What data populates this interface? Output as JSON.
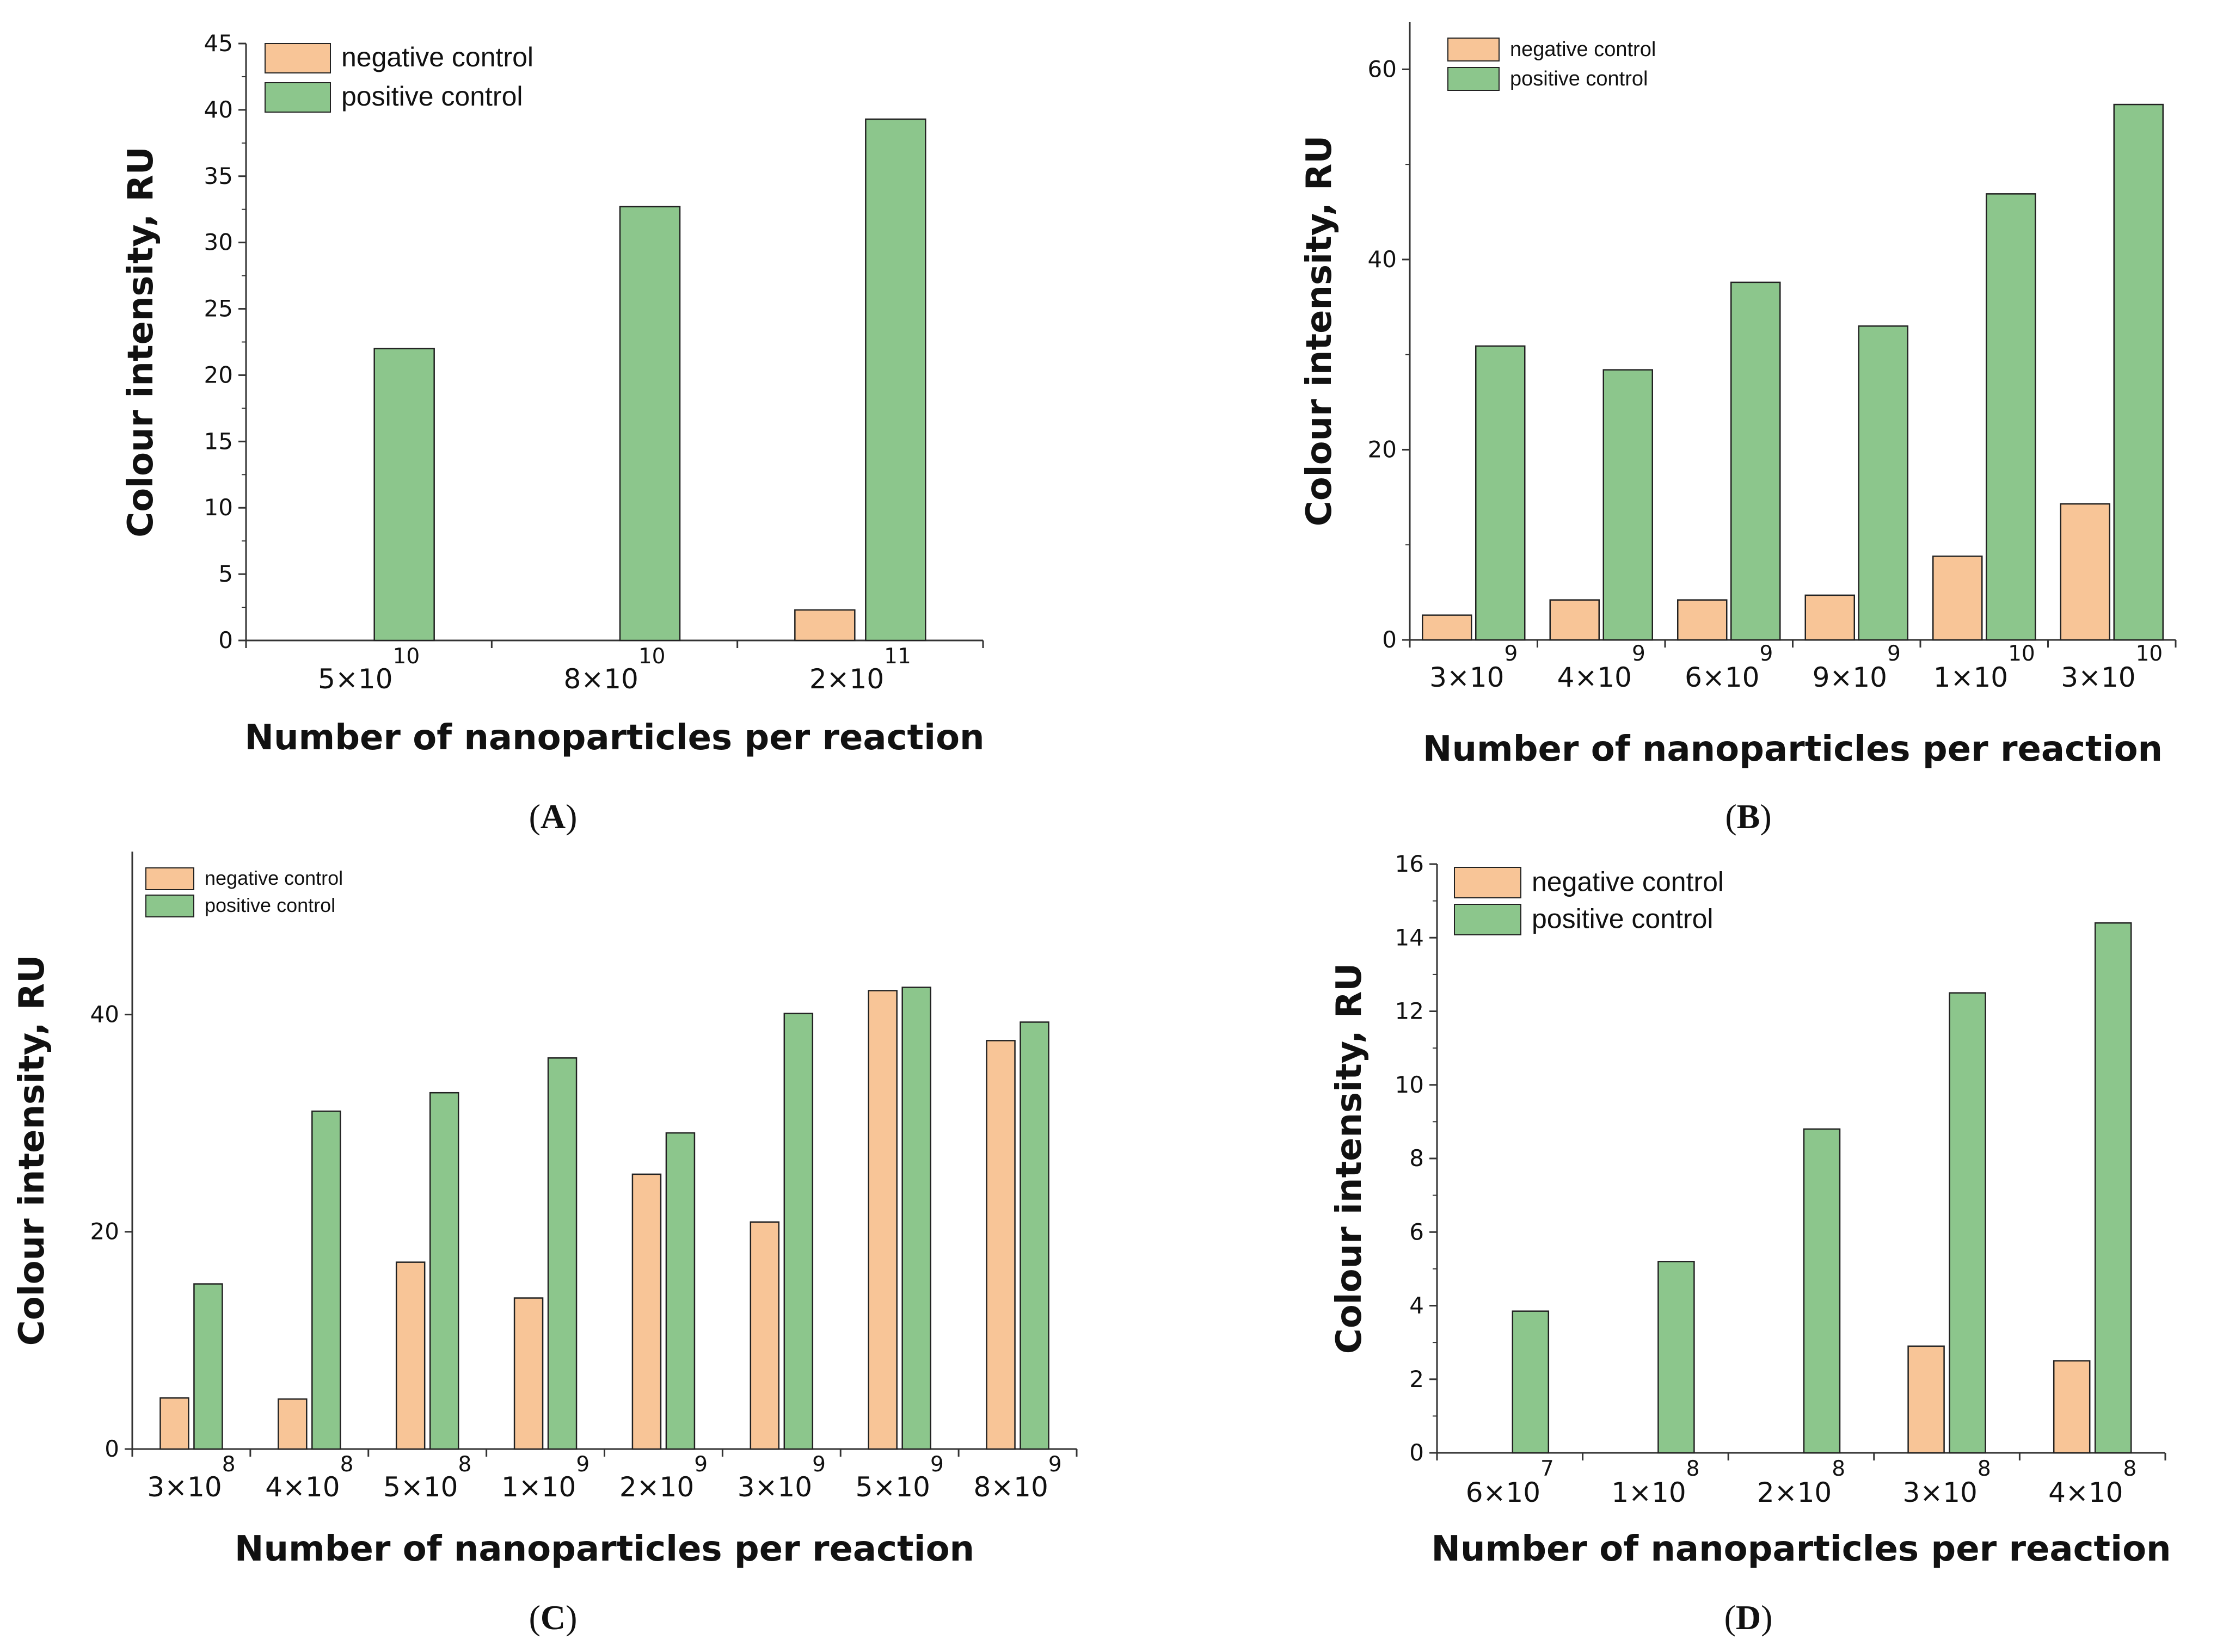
{
  "colors": {
    "negative": "#f8c597",
    "positive": "#8cc68c",
    "stroke": "#222222"
  },
  "chart_data": [
    {
      "panel": "A",
      "type": "bar",
      "xlabel": "Number of nanoparticles per reaction",
      "ylabel": "Colour intensity, RU",
      "ylim": [
        0,
        45
      ],
      "yticks": [
        0,
        5,
        10,
        15,
        20,
        25,
        30,
        35,
        40,
        45
      ],
      "categories": [
        {
          "mant": "5",
          "times": "×10",
          "exp": "10"
        },
        {
          "mant": "8",
          "times": "×10",
          "exp": "10"
        },
        {
          "mant": "2",
          "times": "×10",
          "exp": "11"
        }
      ],
      "series": [
        {
          "name": "negative control",
          "color": "#f8c597",
          "values": [
            0,
            0,
            2.3
          ]
        },
        {
          "name": "positive control",
          "color": "#8cc68c",
          "values": [
            22,
            32.7,
            39.3
          ]
        }
      ]
    },
    {
      "panel": "B",
      "type": "bar",
      "xlabel": "Number of nanoparticles per reaction",
      "ylabel": "Colour intensity, RU",
      "ylim": [
        0,
        65
      ],
      "yticks": [
        0,
        20,
        40,
        60
      ],
      "categories": [
        {
          "mant": "3",
          "times": "×10",
          "exp": "9"
        },
        {
          "mant": "4",
          "times": "×10",
          "exp": "9"
        },
        {
          "mant": "6",
          "times": "×10",
          "exp": "9"
        },
        {
          "mant": "9",
          "times": "×10",
          "exp": "9"
        },
        {
          "mant": "1",
          "times": "×10",
          "exp": "10"
        },
        {
          "mant": "3",
          "times": "×10",
          "exp": "10"
        }
      ],
      "series": [
        {
          "name": "negative control",
          "color": "#f8c597",
          "values": [
            2.6,
            4.2,
            4.2,
            4.7,
            8.8,
            14.3
          ]
        },
        {
          "name": "positive control",
          "color": "#8cc68c",
          "values": [
            30.9,
            28.4,
            37.6,
            33,
            46.9,
            56.3
          ]
        }
      ]
    },
    {
      "panel": "C",
      "type": "bar",
      "xlabel": "Number of nanoparticles per reaction",
      "ylabel": "Colour intensity, RU",
      "ylim": [
        0,
        55
      ],
      "yticks": [
        0,
        20,
        40
      ],
      "categories": [
        {
          "mant": "3",
          "times": "×10",
          "exp": "8"
        },
        {
          "mant": "4",
          "times": "×10",
          "exp": "8"
        },
        {
          "mant": "5",
          "times": "×10",
          "exp": "8"
        },
        {
          "mant": "1",
          "times": "×10",
          "exp": "9"
        },
        {
          "mant": "2",
          "times": "×10",
          "exp": "9"
        },
        {
          "mant": "3",
          "times": "×10",
          "exp": "9"
        },
        {
          "mant": "5",
          "times": "×10",
          "exp": "9"
        },
        {
          "mant": "8",
          "times": "×10",
          "exp": "9"
        }
      ],
      "series": [
        {
          "name": "negative control",
          "color": "#f8c597",
          "values": [
            4.7,
            4.6,
            17.2,
            13.9,
            25.3,
            20.9,
            42.2,
            37.6
          ]
        },
        {
          "name": "positive control",
          "color": "#8cc68c",
          "values": [
            15.2,
            31.1,
            32.8,
            36,
            29.1,
            40.1,
            42.5,
            39.3
          ]
        }
      ]
    },
    {
      "panel": "D",
      "type": "bar",
      "xlabel": "Number of nanoparticles per reaction",
      "ylabel": "Colour intensity, RU",
      "ylim": [
        0,
        16
      ],
      "yticks": [
        0,
        2,
        4,
        6,
        8,
        10,
        12,
        14,
        16
      ],
      "categories": [
        {
          "mant": "6",
          "times": "×10",
          "exp": "7"
        },
        {
          "mant": "1",
          "times": "×10",
          "exp": "8"
        },
        {
          "mant": "2",
          "times": "×10",
          "exp": "8"
        },
        {
          "mant": "3",
          "times": "×10",
          "exp": "8"
        },
        {
          "mant": "4",
          "times": "×10",
          "exp": "8"
        }
      ],
      "series": [
        {
          "name": "negative control",
          "color": "#f8c597",
          "values": [
            0,
            0,
            0,
            2.9,
            2.5
          ]
        },
        {
          "name": "positive control",
          "color": "#8cc68c",
          "values": [
            3.85,
            5.2,
            8.8,
            12.5,
            14.4
          ]
        }
      ]
    }
  ]
}
